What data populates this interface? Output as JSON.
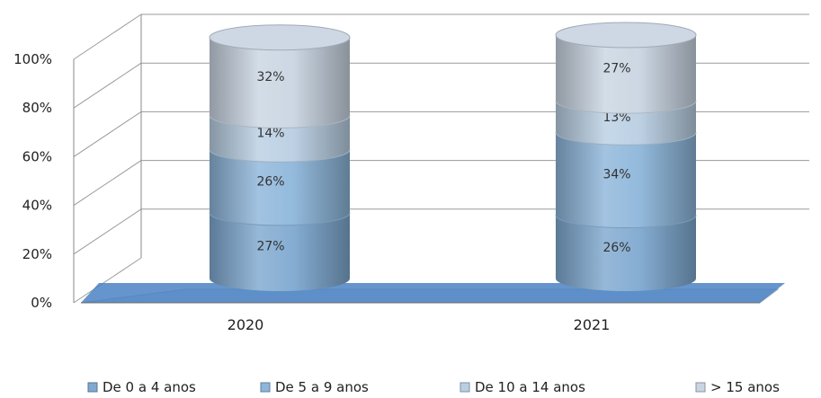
{
  "chart_data": {
    "type": "bar",
    "stacked": true,
    "percent_stacked": true,
    "style": "3d-cylinder",
    "categories": [
      "2020",
      "2021"
    ],
    "series": [
      {
        "name": "De 0 a 4 anos",
        "values": [
          27,
          26
        ],
        "labels": [
          "27%",
          "26%"
        ],
        "color": "#7fa9d0"
      },
      {
        "name": "De 5 a 9 anos",
        "values": [
          26,
          34
        ],
        "labels": [
          "26%",
          "34%"
        ],
        "color": "#8db6da"
      },
      {
        "name": "De 10 a 14 anos",
        "values": [
          14,
          13
        ],
        "labels": [
          "14%",
          "13%"
        ],
        "color": "#b9cfe3"
      },
      {
        "name": "> 15 anos",
        "values": [
          32,
          27
        ],
        "labels": [
          "32%",
          "27%"
        ],
        "color": "#c9d5e2"
      }
    ],
    "ylim": [
      0,
      100
    ],
    "yticks": [
      "0%",
      "20%",
      "40%",
      "60%",
      "80%",
      "100%"
    ],
    "grid": true,
    "legend_position": "bottom",
    "floor_color": "#4a83c3",
    "title": "",
    "xlabel": "",
    "ylabel": ""
  }
}
